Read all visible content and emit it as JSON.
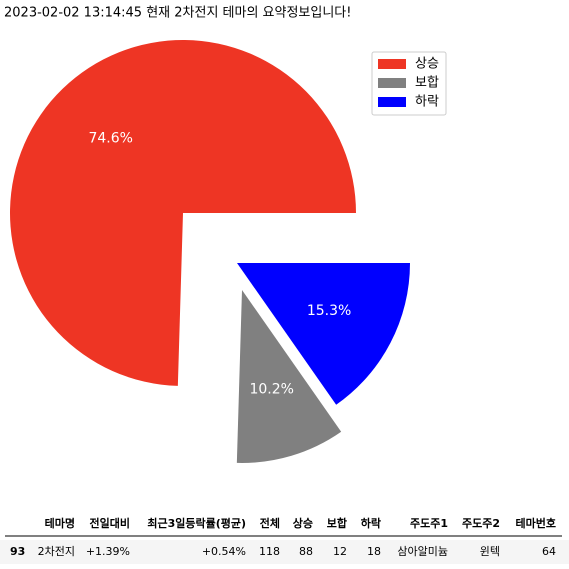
{
  "chart_data": {
    "type": "pie",
    "title": "2023-02-02 13:14:45 현재 2차전지 테마의 요약정보입니다!",
    "categories": [
      "상승",
      "보합",
      "하락"
    ],
    "values": [
      74.6,
      10.2,
      15.3
    ],
    "value_labels": [
      "74.6%",
      "10.2%",
      "15.3%"
    ],
    "colors": [
      "#ee3524",
      "#808080",
      "#0000ff"
    ],
    "legend": "upper right"
  },
  "table": {
    "header": [
      "",
      "테마명",
      "전일대비",
      "최근3일등락률(평균)",
      "전체",
      "상승",
      "보합",
      "하락",
      "주도주1",
      "주도주2",
      "테마번호"
    ],
    "rows": [
      [
        "93",
        "2차전지",
        "+1.39%",
        "+0.54%",
        "118",
        "88",
        "12",
        "18",
        "삼아알미늄",
        "윈텍",
        "64"
      ]
    ]
  }
}
